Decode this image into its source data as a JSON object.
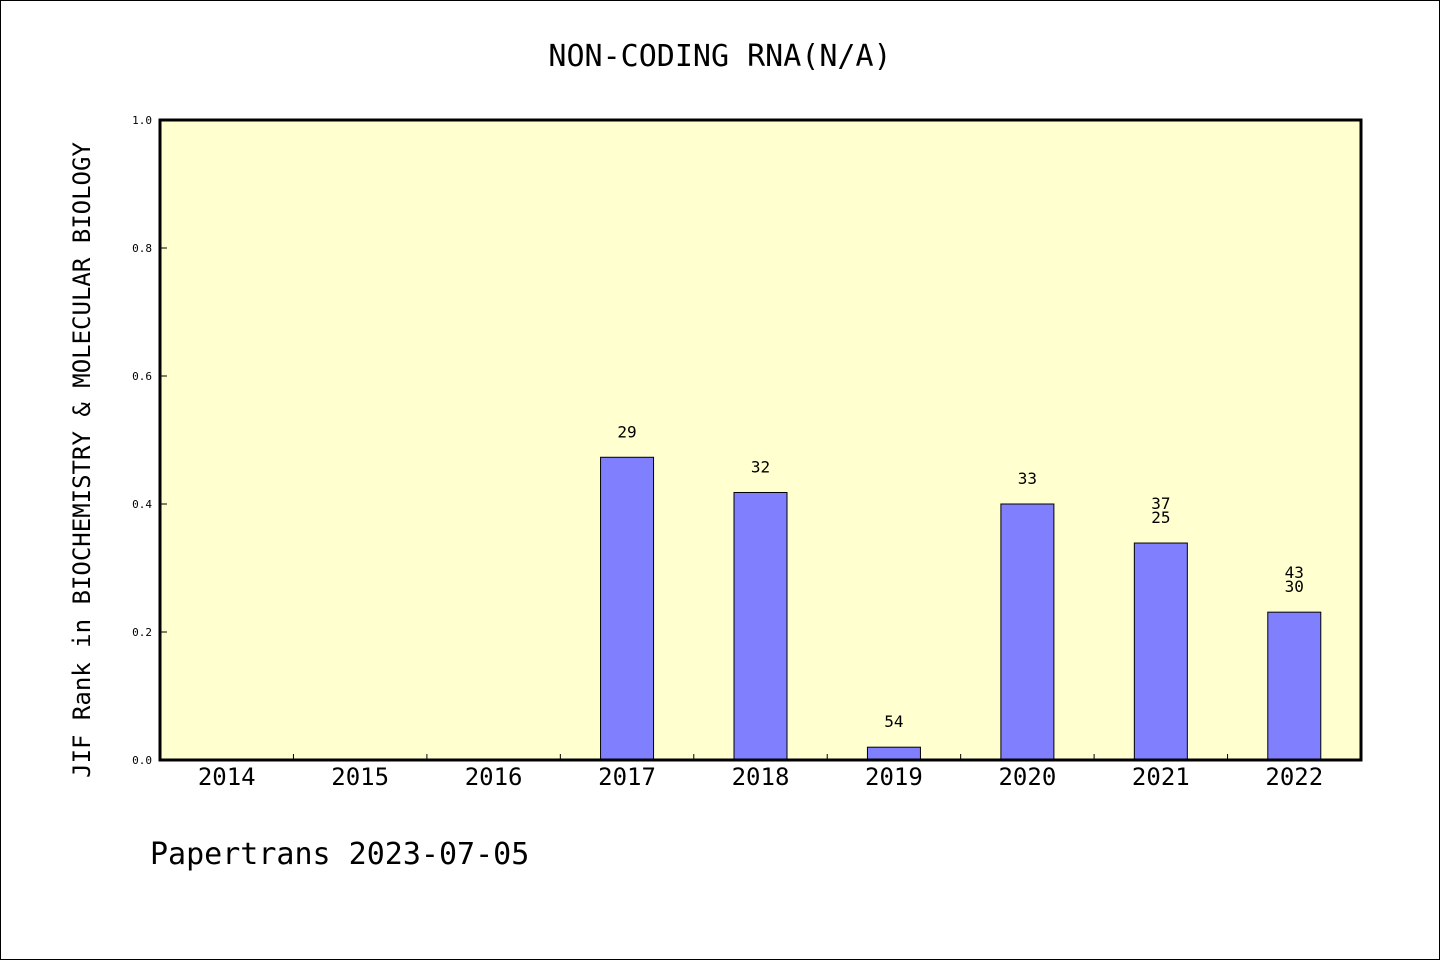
{
  "chart_data": {
    "type": "bar",
    "title": "NON-CODING RNA(N/A)",
    "xlabel": "",
    "ylabel": "JIF Rank in BIOCHEMISTRY & MOLECULAR BIOLOGY",
    "ylim": [
      0,
      1.0
    ],
    "yticks": [
      "0.0",
      "0.2",
      "0.4",
      "0.6",
      "0.8",
      "1.0"
    ],
    "categories": [
      "2014",
      "2015",
      "2016",
      "2017",
      "2018",
      "2019",
      "2020",
      "2021",
      "2022"
    ],
    "values": [
      null,
      null,
      null,
      0.473,
      0.418,
      0.02,
      0.4,
      0.339,
      0.231
    ],
    "labels": [
      [],
      [],
      [],
      [
        "29"
      ],
      [
        "32"
      ],
      [
        "54"
      ],
      [
        "33"
      ],
      [
        "37",
        "25"
      ],
      [
        "43",
        "30"
      ]
    ],
    "bar_color": "#8080ff",
    "plot_background": "#ffffd0",
    "grid": false,
    "legend": "none"
  },
  "footer": "Papertrans 2023-07-05"
}
